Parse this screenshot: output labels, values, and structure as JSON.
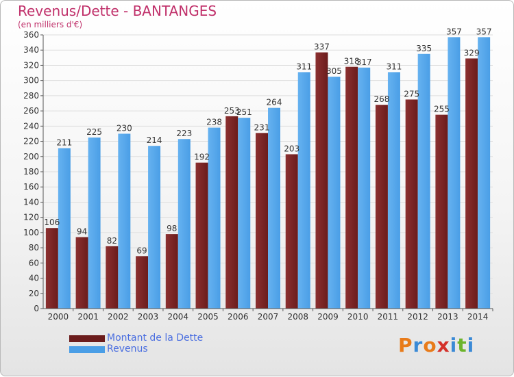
{
  "title": "Revenus/Dette - BANTANGES",
  "subtitle": "(en milliers d'€)",
  "logo": {
    "letters": [
      "P",
      "r",
      "o",
      "x",
      "i",
      "t",
      "i"
    ],
    "colors": [
      "#e87b1a",
      "#3a8ad6",
      "#e87b1a",
      "#d4312a",
      "#3a8ad6",
      "#6cb42c",
      "#3a8ad6"
    ]
  },
  "colors": {
    "dette": "#6b1c1c",
    "dette_light": "#8c3030",
    "revenus": "#4a9ee6",
    "revenus_light": "#66b2f0"
  },
  "chart_data": {
    "type": "bar",
    "title": "Revenus/Dette - BANTANGES",
    "ylabel": "(en milliers d'€)",
    "categories": [
      "2000",
      "2001",
      "2002",
      "2003",
      "2004",
      "2005",
      "2006",
      "2007",
      "2008",
      "2009",
      "2010",
      "2011",
      "2012",
      "2013",
      "2014"
    ],
    "series": [
      {
        "name": "Montant de la Dette",
        "values": [
          106,
          94,
          82,
          69,
          98,
          192,
          253,
          231,
          203,
          337,
          318,
          268,
          275,
          255,
          329
        ]
      },
      {
        "name": "Revenus",
        "values": [
          211,
          225,
          230,
          214,
          223,
          238,
          251,
          264,
          311,
          305,
          317,
          311,
          335,
          357,
          357
        ]
      }
    ],
    "ylim": [
      0,
      360
    ],
    "ytick_step": 20,
    "grid": true,
    "legend": "bottom-left"
  }
}
